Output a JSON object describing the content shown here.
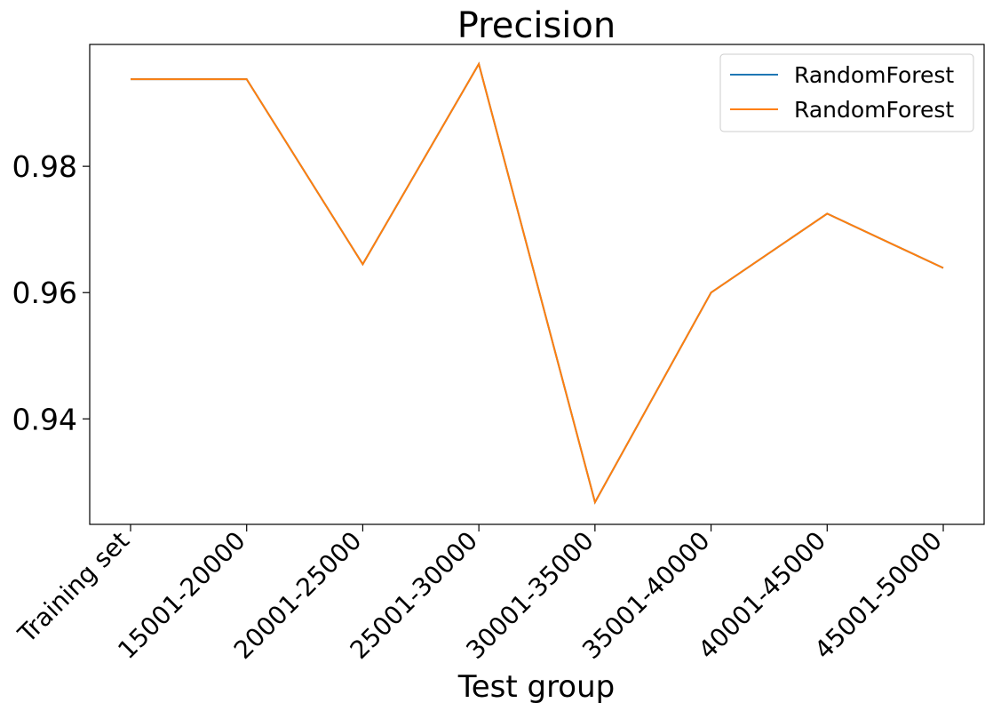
{
  "chart_data": {
    "type": "line",
    "title": "Precision",
    "xlabel": "Test group",
    "ylabel": "",
    "categories": [
      "Training set",
      "15001-20000",
      "20001-25000",
      "25001-30000",
      "30001-35000",
      "35001-40000",
      "40001-45000",
      "45001-50000"
    ],
    "yticks": [
      0.94,
      0.96,
      0.98
    ],
    "ytick_labels": [
      "0.94",
      "0.96",
      "0.98"
    ],
    "ylim": [
      0.9233,
      0.9993
    ],
    "grid": false,
    "legend_position": "top-right",
    "series": [
      {
        "name": "RandomForest",
        "color": "#1f77b4",
        "values": [
          0.9938,
          0.9938,
          0.9645,
          0.9962,
          0.9268,
          0.96,
          0.9725,
          0.9639
        ]
      },
      {
        "name": "RandomForest",
        "color": "#ff7f0e",
        "values": [
          0.9938,
          0.9938,
          0.9645,
          0.9962,
          0.9268,
          0.96,
          0.9725,
          0.9639
        ]
      }
    ]
  }
}
